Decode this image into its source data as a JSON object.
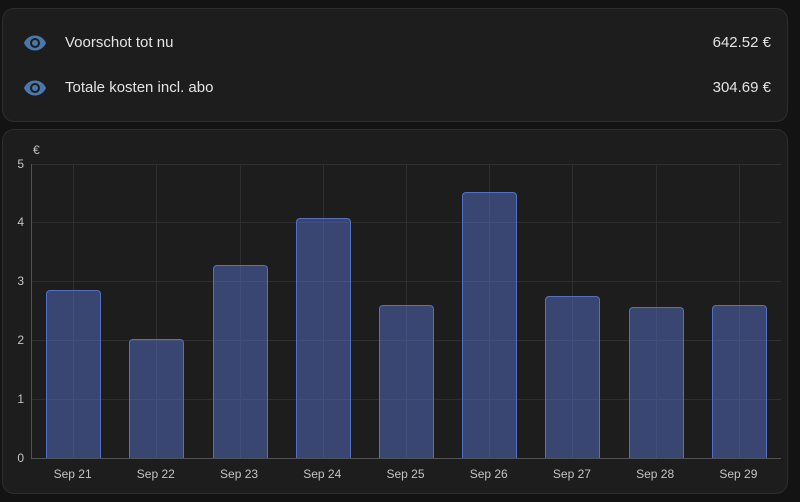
{
  "summary": {
    "rows": [
      {
        "label": "Voorschot tot nu",
        "value": "642.52 €"
      },
      {
        "label": "Totale kosten incl. abo",
        "value": "304.69 €"
      }
    ]
  },
  "colors": {
    "page_bg": "#131313",
    "card_bg": "#1d1d1d",
    "card_border": "#2d2d2d",
    "icon_blue": "#4a78ab",
    "bar_border": "#5470c6",
    "bar_fill": "rgba(84,112,198,0.5)",
    "grid": "#2f2f2f",
    "axis": "#525252",
    "tick_text": "#c3c3c3",
    "label_text": "#e4e4e4"
  },
  "chart_data": {
    "type": "bar",
    "title": "",
    "unit": "€",
    "xlabel": "",
    "ylabel": "€",
    "categories": [
      "Sep 21",
      "Sep 22",
      "Sep 23",
      "Sep 24",
      "Sep 25",
      "Sep 26",
      "Sep 27",
      "Sep 28",
      "Sep 29"
    ],
    "values": [
      2.85,
      2.02,
      3.29,
      4.08,
      2.6,
      4.52,
      2.76,
      2.57,
      2.6
    ],
    "ylim": [
      0,
      5
    ],
    "yticks": [
      0,
      1,
      2,
      3,
      4,
      5
    ],
    "grid": true,
    "legend": "none",
    "bar_color": "#5470c6"
  }
}
